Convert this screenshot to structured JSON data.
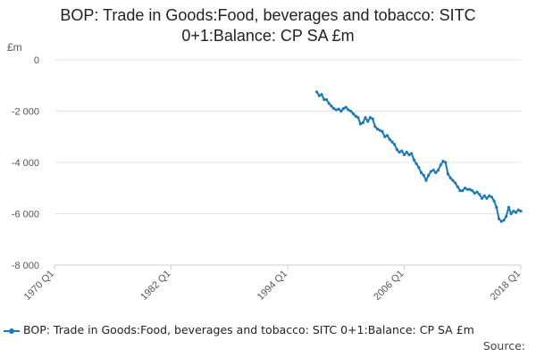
{
  "chart_data": {
    "type": "line",
    "title_line1": "BOP: Trade in Goods:Food, beverages and tobacco: SITC",
    "title_line2": "0+1:Balance: CP SA £m",
    "ylabel": "£m",
    "ylim": [
      -8000,
      0
    ],
    "yticks": [
      0,
      -2000,
      -4000,
      -6000,
      -8000
    ],
    "ytick_labels": [
      "0",
      "-2 000",
      "-4 000",
      "-6 000",
      "-8 000"
    ],
    "xlim": [
      1970.0,
      2018.0
    ],
    "xticks": [
      1970.0,
      1982.0,
      1994.0,
      2006.0,
      2018.0
    ],
    "xtick_labels": [
      "1970 Q1",
      "1982 Q1",
      "1994 Q1",
      "2006 Q1",
      "2018 Q1"
    ],
    "grid": true,
    "legend_position": "bottom",
    "series": [
      {
        "name": "BOP: Trade in Goods:Food, beverages and tobacco: SITC 0+1:Balance: CP SA £m",
        "color": "#1878b9",
        "x": [
          1997.0,
          1997.25,
          1997.5,
          1997.75,
          1998.0,
          1998.25,
          1998.5,
          1998.75,
          1999.0,
          1999.25,
          1999.5,
          1999.75,
          2000.0,
          2000.25,
          2000.5,
          2000.75,
          2001.0,
          2001.25,
          2001.5,
          2001.75,
          2002.0,
          2002.25,
          2002.5,
          2002.75,
          2003.0,
          2003.25,
          2003.5,
          2003.75,
          2004.0,
          2004.25,
          2004.5,
          2004.75,
          2005.0,
          2005.25,
          2005.5,
          2005.75,
          2006.0,
          2006.25,
          2006.5,
          2006.75,
          2007.0,
          2007.25,
          2007.5,
          2007.75,
          2008.0,
          2008.25,
          2008.5,
          2008.75,
          2009.0,
          2009.25,
          2009.5,
          2009.75,
          2010.0,
          2010.25,
          2010.5,
          2010.75,
          2011.0,
          2011.25,
          2011.5,
          2011.75,
          2012.0,
          2012.25,
          2012.5,
          2012.75,
          2013.0,
          2013.25,
          2013.5,
          2013.75,
          2014.0,
          2014.25,
          2014.5,
          2014.75,
          2015.0,
          2015.25,
          2015.5,
          2015.75,
          2016.0,
          2016.25,
          2016.5,
          2016.75,
          2017.0,
          2017.25,
          2017.5,
          2017.75,
          2018.0
        ],
        "values": [
          -1250,
          -1400,
          -1350,
          -1550,
          -1550,
          -1700,
          -1800,
          -1900,
          -1950,
          -1920,
          -2000,
          -1900,
          -1850,
          -1950,
          -2000,
          -2100,
          -2200,
          -2250,
          -2500,
          -2450,
          -2250,
          -2400,
          -2250,
          -2300,
          -2600,
          -2700,
          -2750,
          -2800,
          -3000,
          -2950,
          -3100,
          -3200,
          -3300,
          -3500,
          -3600,
          -3550,
          -3700,
          -3600,
          -3700,
          -3650,
          -3900,
          -4050,
          -4200,
          -4400,
          -4500,
          -4700,
          -4500,
          -4350,
          -4300,
          -4400,
          -4300,
          -4100,
          -3950,
          -4000,
          -4450,
          -4600,
          -4700,
          -4800,
          -4950,
          -5100,
          -5100,
          -5000,
          -5050,
          -5050,
          -5100,
          -5200,
          -5150,
          -5250,
          -5400,
          -5300,
          -5400,
          -5300,
          -5350,
          -5500,
          -5750,
          -6200,
          -6300,
          -6250,
          -6100,
          -5750,
          -6000,
          -5900,
          -5950,
          -5850,
          -5900
        ]
      }
    ]
  },
  "legend": {
    "label": "BOP: Trade in Goods:Food, beverages and tobacco: SITC 0+1:Balance: CP SA £m"
  },
  "source_label": "Source:"
}
